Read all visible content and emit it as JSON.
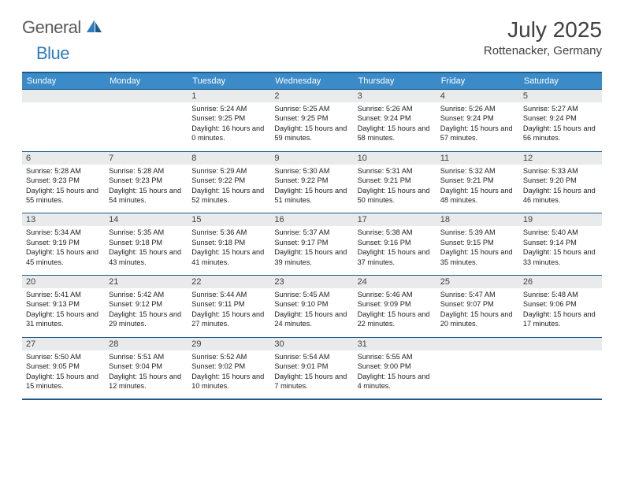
{
  "logo": {
    "general": "General",
    "blue": "Blue"
  },
  "title": "July 2025",
  "location": "Rottenacker, Germany",
  "weekdays": [
    "Sunday",
    "Monday",
    "Tuesday",
    "Wednesday",
    "Thursday",
    "Friday",
    "Saturday"
  ],
  "colors": {
    "header_bg": "#3b8bc9",
    "border": "#1d5a8a",
    "daynum_bg": "#e9eaeb",
    "logo_gray": "#5a5a5a",
    "logo_blue": "#2d7bc0"
  },
  "firstWeekday": 2,
  "daysInMonth": 31,
  "days": [
    {
      "n": 1,
      "sr": "5:24 AM",
      "ss": "9:25 PM",
      "dl": "16 hours and 0 minutes."
    },
    {
      "n": 2,
      "sr": "5:25 AM",
      "ss": "9:25 PM",
      "dl": "15 hours and 59 minutes."
    },
    {
      "n": 3,
      "sr": "5:26 AM",
      "ss": "9:24 PM",
      "dl": "15 hours and 58 minutes."
    },
    {
      "n": 4,
      "sr": "5:26 AM",
      "ss": "9:24 PM",
      "dl": "15 hours and 57 minutes."
    },
    {
      "n": 5,
      "sr": "5:27 AM",
      "ss": "9:24 PM",
      "dl": "15 hours and 56 minutes."
    },
    {
      "n": 6,
      "sr": "5:28 AM",
      "ss": "9:23 PM",
      "dl": "15 hours and 55 minutes."
    },
    {
      "n": 7,
      "sr": "5:28 AM",
      "ss": "9:23 PM",
      "dl": "15 hours and 54 minutes."
    },
    {
      "n": 8,
      "sr": "5:29 AM",
      "ss": "9:22 PM",
      "dl": "15 hours and 52 minutes."
    },
    {
      "n": 9,
      "sr": "5:30 AM",
      "ss": "9:22 PM",
      "dl": "15 hours and 51 minutes."
    },
    {
      "n": 10,
      "sr": "5:31 AM",
      "ss": "9:21 PM",
      "dl": "15 hours and 50 minutes."
    },
    {
      "n": 11,
      "sr": "5:32 AM",
      "ss": "9:21 PM",
      "dl": "15 hours and 48 minutes."
    },
    {
      "n": 12,
      "sr": "5:33 AM",
      "ss": "9:20 PM",
      "dl": "15 hours and 46 minutes."
    },
    {
      "n": 13,
      "sr": "5:34 AM",
      "ss": "9:19 PM",
      "dl": "15 hours and 45 minutes."
    },
    {
      "n": 14,
      "sr": "5:35 AM",
      "ss": "9:18 PM",
      "dl": "15 hours and 43 minutes."
    },
    {
      "n": 15,
      "sr": "5:36 AM",
      "ss": "9:18 PM",
      "dl": "15 hours and 41 minutes."
    },
    {
      "n": 16,
      "sr": "5:37 AM",
      "ss": "9:17 PM",
      "dl": "15 hours and 39 minutes."
    },
    {
      "n": 17,
      "sr": "5:38 AM",
      "ss": "9:16 PM",
      "dl": "15 hours and 37 minutes."
    },
    {
      "n": 18,
      "sr": "5:39 AM",
      "ss": "9:15 PM",
      "dl": "15 hours and 35 minutes."
    },
    {
      "n": 19,
      "sr": "5:40 AM",
      "ss": "9:14 PM",
      "dl": "15 hours and 33 minutes."
    },
    {
      "n": 20,
      "sr": "5:41 AM",
      "ss": "9:13 PM",
      "dl": "15 hours and 31 minutes."
    },
    {
      "n": 21,
      "sr": "5:42 AM",
      "ss": "9:12 PM",
      "dl": "15 hours and 29 minutes."
    },
    {
      "n": 22,
      "sr": "5:44 AM",
      "ss": "9:11 PM",
      "dl": "15 hours and 27 minutes."
    },
    {
      "n": 23,
      "sr": "5:45 AM",
      "ss": "9:10 PM",
      "dl": "15 hours and 24 minutes."
    },
    {
      "n": 24,
      "sr": "5:46 AM",
      "ss": "9:09 PM",
      "dl": "15 hours and 22 minutes."
    },
    {
      "n": 25,
      "sr": "5:47 AM",
      "ss": "9:07 PM",
      "dl": "15 hours and 20 minutes."
    },
    {
      "n": 26,
      "sr": "5:48 AM",
      "ss": "9:06 PM",
      "dl": "15 hours and 17 minutes."
    },
    {
      "n": 27,
      "sr": "5:50 AM",
      "ss": "9:05 PM",
      "dl": "15 hours and 15 minutes."
    },
    {
      "n": 28,
      "sr": "5:51 AM",
      "ss": "9:04 PM",
      "dl": "15 hours and 12 minutes."
    },
    {
      "n": 29,
      "sr": "5:52 AM",
      "ss": "9:02 PM",
      "dl": "15 hours and 10 minutes."
    },
    {
      "n": 30,
      "sr": "5:54 AM",
      "ss": "9:01 PM",
      "dl": "15 hours and 7 minutes."
    },
    {
      "n": 31,
      "sr": "5:55 AM",
      "ss": "9:00 PM",
      "dl": "15 hours and 4 minutes."
    }
  ],
  "labels": {
    "sunrise": "Sunrise:",
    "sunset": "Sunset:",
    "daylight": "Daylight:"
  }
}
